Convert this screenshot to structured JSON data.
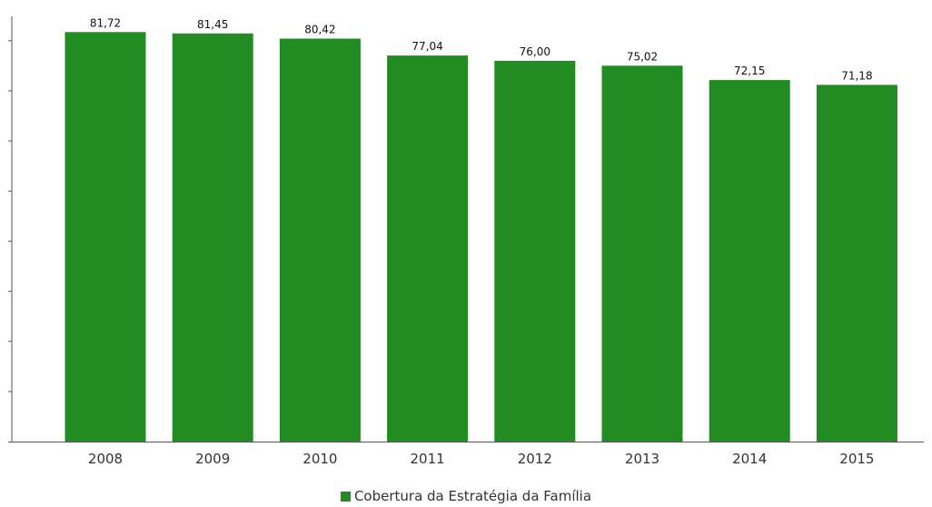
{
  "chart_data": {
    "type": "bar",
    "categories": [
      "2008",
      "2009",
      "2010",
      "2011",
      "2012",
      "2013",
      "2014",
      "2015"
    ],
    "series": [
      {
        "name": "Cobertura da Estratégia da Família",
        "values": [
          81.72,
          81.45,
          80.42,
          77.04,
          76.0,
          75.02,
          72.15,
          71.18
        ],
        "value_labels": [
          "81,72",
          "81,45",
          "80,42",
          "77,04",
          "76,00",
          "75,02",
          "72,15",
          "71,18"
        ],
        "color": "#228b22"
      }
    ],
    "ylim": [
      0,
      90
    ],
    "grid": false,
    "legend": "bottom-center"
  },
  "legend": {
    "label": "Cobertura da Estratégia da Família",
    "color": "#228b22"
  },
  "colors": {
    "axis": "#555555",
    "bar": "#228b22",
    "text": "#333333"
  }
}
